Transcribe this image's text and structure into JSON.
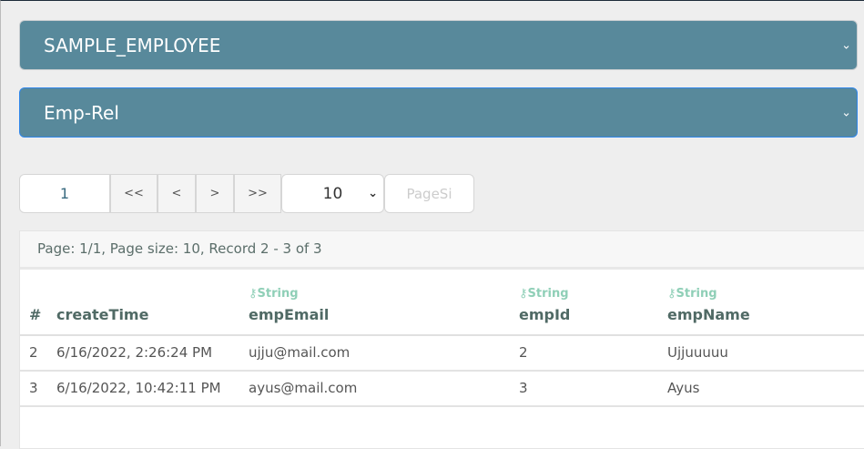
{
  "selects": {
    "table": "SAMPLE_EMPLOYEE",
    "relation": "Emp-Rel"
  },
  "pager": {
    "page": "1",
    "first": "<<",
    "prev": "<",
    "next": ">",
    "last": ">>",
    "page_size": "10",
    "page_size_placeholder": "PageSi"
  },
  "info": "Page: 1/1, Page size: 10, Record 2 - 3 of 3",
  "columns": [
    {
      "name": "#",
      "type": ""
    },
    {
      "name": "createTime",
      "type": ""
    },
    {
      "name": "empEmail",
      "type": "String"
    },
    {
      "name": "empId",
      "type": "String"
    },
    {
      "name": "empName",
      "type": "String"
    }
  ],
  "rows": [
    [
      "2",
      "6/16/2022, 2:26:24 PM",
      "ujju@mail.com",
      "2",
      "Ujjuuuuu"
    ],
    [
      "3",
      "6/16/2022, 10:42:11 PM",
      "ayus@mail.com",
      "3",
      "Ayus"
    ]
  ]
}
